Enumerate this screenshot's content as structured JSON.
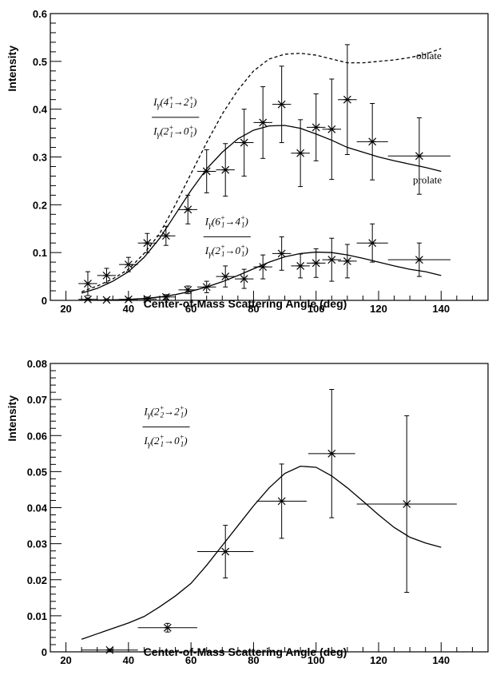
{
  "chart_data": [
    {
      "type": "scatter",
      "xlabel": "Center-of-Mass Scattering Angle (deg)",
      "ylabel": "Intensity",
      "xlim": [
        15,
        155
      ],
      "ylim": [
        0,
        0.6
      ],
      "xticks": [
        20,
        40,
        60,
        80,
        100,
        120,
        140
      ],
      "xtick_labels": [
        "20",
        "40",
        "60",
        "80",
        "100",
        "120",
        "140"
      ],
      "yticks": [
        0,
        0.1,
        0.2,
        0.3,
        0.4,
        0.5,
        0.6
      ],
      "ytick_labels": [
        "0",
        "0.1",
        "0.2",
        "0.3",
        "0.4",
        "0.5",
        "0.6"
      ],
      "grid": false,
      "series": [
        {
          "key": "ratio_4_2",
          "x": [
            27,
            33,
            40,
            46,
            52,
            59,
            65,
            71,
            77,
            83,
            89,
            95,
            100,
            105,
            110,
            118,
            133
          ],
          "xerr": [
            3,
            3,
            3,
            3,
            3,
            3,
            3,
            3,
            3,
            3,
            3,
            3,
            3,
            3,
            3,
            5,
            10
          ],
          "y": [
            0.035,
            0.052,
            0.075,
            0.12,
            0.135,
            0.19,
            0.27,
            0.273,
            0.33,
            0.372,
            0.41,
            0.308,
            0.362,
            0.358,
            0.42,
            0.332,
            0.302
          ],
          "yerr": [
            0.025,
            0.015,
            0.015,
            0.02,
            0.02,
            0.03,
            0.045,
            0.055,
            0.07,
            0.075,
            0.08,
            0.07,
            0.07,
            0.105,
            0.115,
            0.08,
            0.08
          ]
        },
        {
          "key": "ratio_6_4",
          "x": [
            27,
            33,
            40,
            46,
            52,
            59,
            65,
            71,
            77,
            83,
            89,
            95,
            100,
            105,
            110,
            118,
            133
          ],
          "xerr": [
            3,
            3,
            3,
            3,
            3,
            3,
            3,
            3,
            3,
            3,
            3,
            3,
            3,
            3,
            3,
            5,
            10
          ],
          "y": [
            0.002,
            0.001,
            0.002,
            0.003,
            0.007,
            0.022,
            0.028,
            0.05,
            0.045,
            0.07,
            0.098,
            0.072,
            0.078,
            0.085,
            0.082,
            0.12,
            0.085
          ],
          "yerr": [
            0.003,
            0.002,
            0.003,
            0.004,
            0.005,
            0.008,
            0.012,
            0.022,
            0.02,
            0.025,
            0.035,
            0.025,
            0.03,
            0.045,
            0.035,
            0.04,
            0.035
          ]
        }
      ],
      "curves": [
        {
          "key": "prolate_4_2",
          "style": "solid",
          "x": [
            25,
            30,
            35,
            40,
            45,
            50,
            55,
            60,
            65,
            70,
            75,
            80,
            85,
            90,
            95,
            100,
            105,
            110,
            115,
            120,
            125,
            130,
            135,
            140
          ],
          "y": [
            0.015,
            0.025,
            0.04,
            0.06,
            0.09,
            0.13,
            0.18,
            0.23,
            0.275,
            0.31,
            0.338,
            0.356,
            0.365,
            0.366,
            0.36,
            0.348,
            0.335,
            0.32,
            0.31,
            0.3,
            0.292,
            0.285,
            0.278,
            0.27
          ]
        },
        {
          "key": "oblate_4_2",
          "style": "dashed",
          "x": [
            25,
            30,
            35,
            40,
            45,
            50,
            55,
            60,
            65,
            70,
            75,
            80,
            85,
            90,
            95,
            100,
            105,
            110,
            115,
            120,
            125,
            130,
            135,
            140
          ],
          "y": [
            0.018,
            0.03,
            0.045,
            0.065,
            0.098,
            0.14,
            0.2,
            0.265,
            0.33,
            0.39,
            0.44,
            0.48,
            0.505,
            0.515,
            0.517,
            0.513,
            0.505,
            0.497,
            0.497,
            0.5,
            0.503,
            0.508,
            0.515,
            0.527
          ]
        },
        {
          "key": "prolate_6_4",
          "style": "solid",
          "x": [
            25,
            30,
            35,
            40,
            45,
            50,
            55,
            60,
            65,
            70,
            75,
            80,
            85,
            90,
            95,
            100,
            105,
            110,
            115,
            120,
            125,
            130,
            135,
            140
          ],
          "y": [
            0.0,
            0.0,
            0.001,
            0.002,
            0.004,
            0.007,
            0.012,
            0.019,
            0.028,
            0.039,
            0.052,
            0.066,
            0.08,
            0.091,
            0.098,
            0.101,
            0.1,
            0.095,
            0.088,
            0.08,
            0.072,
            0.065,
            0.06,
            0.052
          ]
        }
      ],
      "annotations": [
        {
          "key": "oblate",
          "text": "oblate",
          "x": 132,
          "y": 0.505
        },
        {
          "key": "prolate",
          "text": "prolate",
          "x": 131,
          "y": 0.245
        }
      ],
      "ratio_labels": [
        {
          "key": "ratio_label_4_2",
          "x": 48,
          "y_num": 0.408,
          "y_line": 0.383,
          "y_den": 0.357,
          "numerator": [
            "I",
            "γ",
            "(4",
            "+",
            "1",
            "→2",
            "+",
            "1",
            ")"
          ],
          "denominator": [
            "I",
            "γ",
            "(2",
            "+",
            "1",
            "→0",
            "+",
            "1",
            ")"
          ]
        },
        {
          "key": "ratio_label_6_4",
          "x": 64.5,
          "y_num": 0.158,
          "y_line": 0.133,
          "y_den": 0.107,
          "numerator": [
            "I",
            "γ",
            "(6",
            "+",
            "1",
            "→4",
            "+",
            "1",
            ")"
          ],
          "denominator": [
            "I",
            "γ",
            "(2",
            "+",
            "1",
            "→0",
            "+",
            "1",
            ")"
          ]
        }
      ]
    },
    {
      "type": "scatter",
      "xlabel": "Center-of-Mass Scattering Angle (deg)",
      "ylabel": "Intensity",
      "xlim": [
        15,
        155
      ],
      "ylim": [
        0,
        0.08
      ],
      "xticks": [
        20,
        40,
        60,
        80,
        100,
        120,
        140
      ],
      "xtick_labels": [
        "20",
        "40",
        "60",
        "80",
        "100",
        "120",
        "140"
      ],
      "yticks": [
        0,
        0.01,
        0.02,
        0.03,
        0.04,
        0.05,
        0.06,
        0.07,
        0.08
      ],
      "ytick_labels": [
        "0",
        "0.01",
        "0.02",
        "0.03",
        "0.04",
        "0.05",
        "0.06",
        "0.07",
        "0.08"
      ],
      "grid": false,
      "series": [
        {
          "key": "ratio_2_2",
          "x": [
            34,
            52.5,
            71,
            89,
            105,
            129
          ],
          "xerr": [
            9,
            9.5,
            9,
            8,
            7.5,
            16
          ],
          "y": [
            0.0005,
            0.0067,
            0.0278,
            0.0418,
            0.055,
            0.041
          ],
          "yerr": [
            0.0003,
            0.0012,
            0.0073,
            0.0103,
            0.0178,
            0.0245
          ]
        }
      ],
      "curves": [
        {
          "key": "model_2_2",
          "style": "solid",
          "x": [
            25,
            30,
            35,
            40,
            45,
            50,
            55,
            60,
            65,
            70,
            75,
            80,
            85,
            90,
            95,
            100,
            105,
            110,
            115,
            120,
            125,
            130,
            135,
            140
          ],
          "y": [
            0.0035,
            0.005,
            0.0065,
            0.008,
            0.0098,
            0.0125,
            0.0155,
            0.019,
            0.024,
            0.0295,
            0.035,
            0.0405,
            0.0455,
            0.0495,
            0.0515,
            0.0512,
            0.0488,
            0.0455,
            0.0418,
            0.038,
            0.0345,
            0.0318,
            0.0302,
            0.029
          ]
        }
      ],
      "annotations": [],
      "ratio_labels": [
        {
          "key": "ratio_label_2_2",
          "x": 45,
          "y_num": 0.0657,
          "y_line": 0.0624,
          "y_den": 0.059,
          "numerator": [
            "I",
            "γ",
            "(2",
            "+",
            "2",
            "→2",
            "+",
            "1",
            ")"
          ],
          "denominator": [
            "I",
            "γ",
            "(2",
            "+",
            "1",
            "→0",
            "+",
            "1",
            ")"
          ]
        }
      ]
    }
  ]
}
